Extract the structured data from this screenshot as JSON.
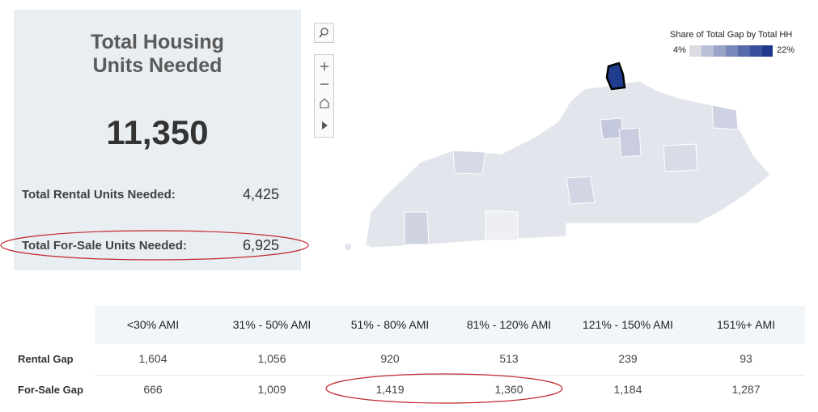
{
  "summary": {
    "title_line1": "Total Housing",
    "title_line2": "Units Needed",
    "total": "11,350",
    "rental_label": "Total Rental Units Needed:",
    "rental_value": "4,425",
    "forsale_label": "Total For-Sale Units Needed:",
    "forsale_value": "6,925"
  },
  "legend": {
    "title": "Share of Total Gap by Total HH",
    "min": "4%",
    "max": "22%"
  },
  "table": {
    "headers": [
      "<30% AMI",
      "31% - 50% AMI",
      "51% - 80% AMI",
      "81% - 120% AMI",
      "121% - 150% AMI",
      "151%+ AMI"
    ],
    "rows": [
      {
        "label": "Rental Gap",
        "cells": [
          "1,604",
          "1,056",
          "920",
          "513",
          "239",
          "93"
        ]
      },
      {
        "label": "For-Sale Gap",
        "cells": [
          "666",
          "1,009",
          "1,419",
          "1,360",
          "1,184",
          "1,287"
        ]
      }
    ]
  }
}
